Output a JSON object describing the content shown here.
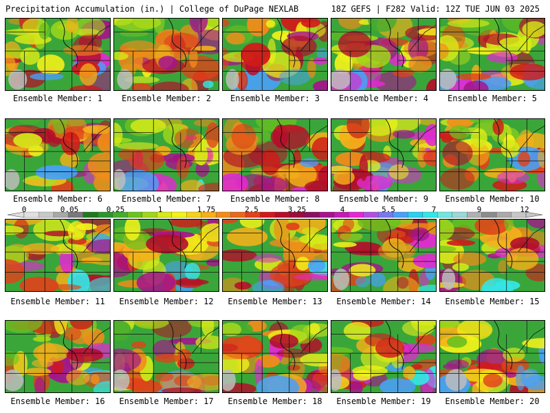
{
  "header": {
    "title": "Precipitation Accumulation (in.) | College of DuPage NEXLAB",
    "run_info": "18Z GEFS | F282 Valid: 12Z TUE JUN 03 2025"
  },
  "colorbar": {
    "labels": [
      "0",
      "0.05",
      "0.25",
      "1",
      "1.75",
      "2.5",
      "3.25",
      "4",
      "5.5",
      "7",
      "9",
      "12"
    ],
    "colors": [
      "#e0e0e0",
      "#c8c8c8",
      "#a8a8a8",
      "#7a7a7a",
      "#1f7a1f",
      "#2e942e",
      "#45ad2e",
      "#6cc21f",
      "#9fd61a",
      "#d6ea19",
      "#f2f21a",
      "#f5d21a",
      "#f5b01a",
      "#f08c1a",
      "#e8691a",
      "#e0421a",
      "#d11a1a",
      "#b30f2a",
      "#9a0f3a",
      "#8a1060",
      "#a5148c",
      "#c21cb0",
      "#e02ad0",
      "#b050e0",
      "#7a78ee",
      "#4aa0f5",
      "#2ad0f0",
      "#35e5e5",
      "#6ee8e0",
      "#9ad8d8",
      "#b0b0b0",
      "#8c8c8c",
      "#aaaaaa",
      "#c6c6c6"
    ]
  },
  "member_label": "Ensemble Member:",
  "members": [
    {
      "label": "Ensemble Member: 1"
    },
    {
      "label": "Ensemble Member: 2"
    },
    {
      "label": "Ensemble Member: 3"
    },
    {
      "label": "Ensemble Member: 4"
    },
    {
      "label": "Ensemble Member: 5"
    },
    {
      "label": "Ensemble Member: 6"
    },
    {
      "label": "Ensemble Member: 7"
    },
    {
      "label": "Ensemble Member: 8"
    },
    {
      "label": "Ensemble Member: 9"
    },
    {
      "label": "Ensemble Member: 10"
    },
    {
      "label": "Ensemble Member: 11"
    },
    {
      "label": "Ensemble Member: 12"
    },
    {
      "label": "Ensemble Member: 13"
    },
    {
      "label": "Ensemble Member: 14"
    },
    {
      "label": "Ensemble Member: 15"
    },
    {
      "label": "Ensemble Member: 16"
    },
    {
      "label": "Ensemble Member: 17"
    },
    {
      "label": "Ensemble Member: 18"
    },
    {
      "label": "Ensemble Member: 19"
    },
    {
      "label": "Ensemble Member: 20"
    }
  ]
}
